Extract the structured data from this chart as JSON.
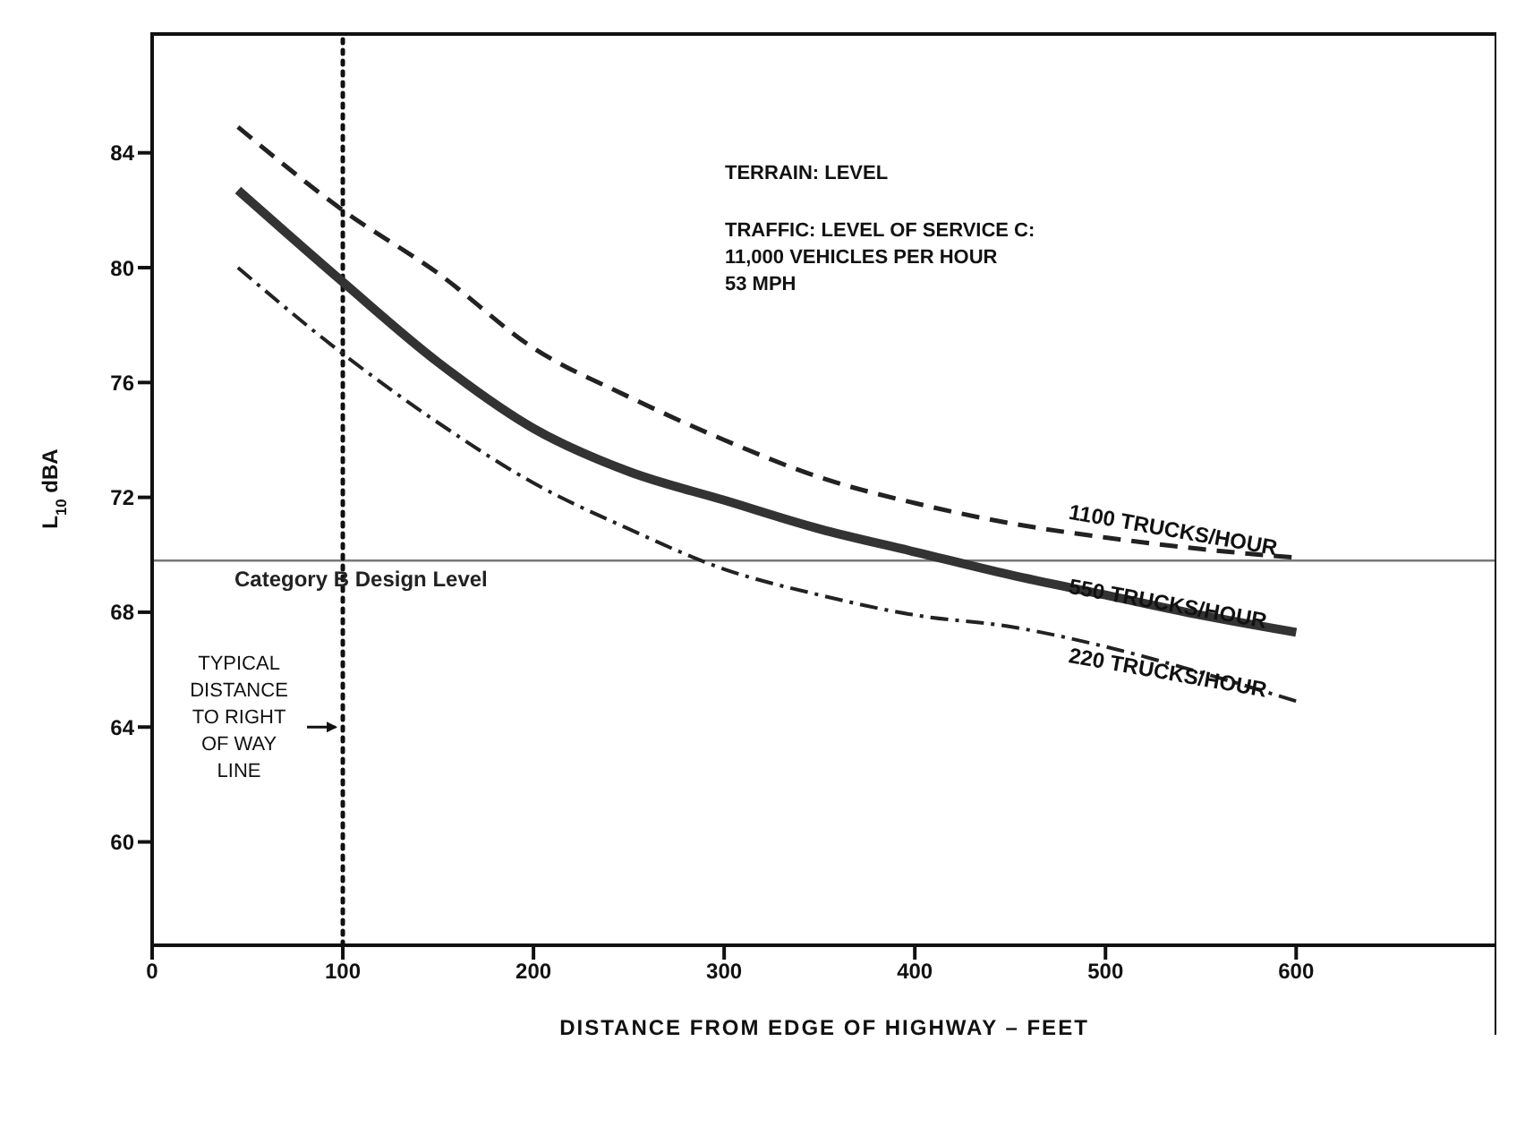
{
  "chart_data": {
    "type": "line",
    "xlabel": "DISTANCE FROM EDGE OF HIGHWAY – FEET",
    "ylabel": "L$_{10}$ dBA",
    "x": [
      45,
      100,
      150,
      200,
      250,
      300,
      350,
      400,
      450,
      500,
      550,
      600
    ],
    "series": [
      {
        "name": "1100 TRUCKS/HOUR",
        "color": "#222222",
        "line_style": "dashed",
        "values": [
          84.9,
          82.0,
          79.8,
          77.2,
          75.5,
          74.0,
          72.7,
          71.8,
          71.1,
          70.6,
          70.2,
          69.9
        ]
      },
      {
        "name": "550 TRUCKS/HOUR",
        "color": "#333333",
        "line_style": "solid",
        "values": [
          82.7,
          79.5,
          76.7,
          74.4,
          72.9,
          71.9,
          70.9,
          70.1,
          69.3,
          68.6,
          67.9,
          67.3
        ]
      },
      {
        "name": "220 TRUCKS/HOUR",
        "color": "#222222",
        "line_style": "dashdot",
        "values": [
          80.0,
          77.0,
          74.6,
          72.5,
          70.9,
          69.5,
          68.6,
          67.9,
          67.5,
          66.8,
          65.9,
          64.9
        ]
      }
    ],
    "xlim": [
      0,
      705
    ],
    "xticks": [
      0,
      100,
      200,
      300,
      400,
      500,
      600
    ],
    "ylim": [
      56.4,
      88.2
    ],
    "yticks": [
      60,
      64,
      68,
      72,
      76,
      80,
      84
    ],
    "marker": "none",
    "ref_lines": [
      {
        "axis": "y",
        "value": 69.8,
        "label": "Category B Design Level",
        "color": "#777777",
        "line_style": "solid"
      },
      {
        "axis": "x",
        "value": 100,
        "label": null,
        "color": "#111111",
        "line_style": "dotted"
      }
    ],
    "annotations": [
      {
        "text": "TYPICAL\nDISTANCE\nTO RIGHT\nOF WAY\nLINE",
        "x": 100,
        "y": 64
      },
      "TERRAIN: LEVEL",
      "TRAFFIC: LEVEL OF SERVICE C:\n11,000 VEHICLES PER HOUR\n53 MPH"
    ]
  }
}
